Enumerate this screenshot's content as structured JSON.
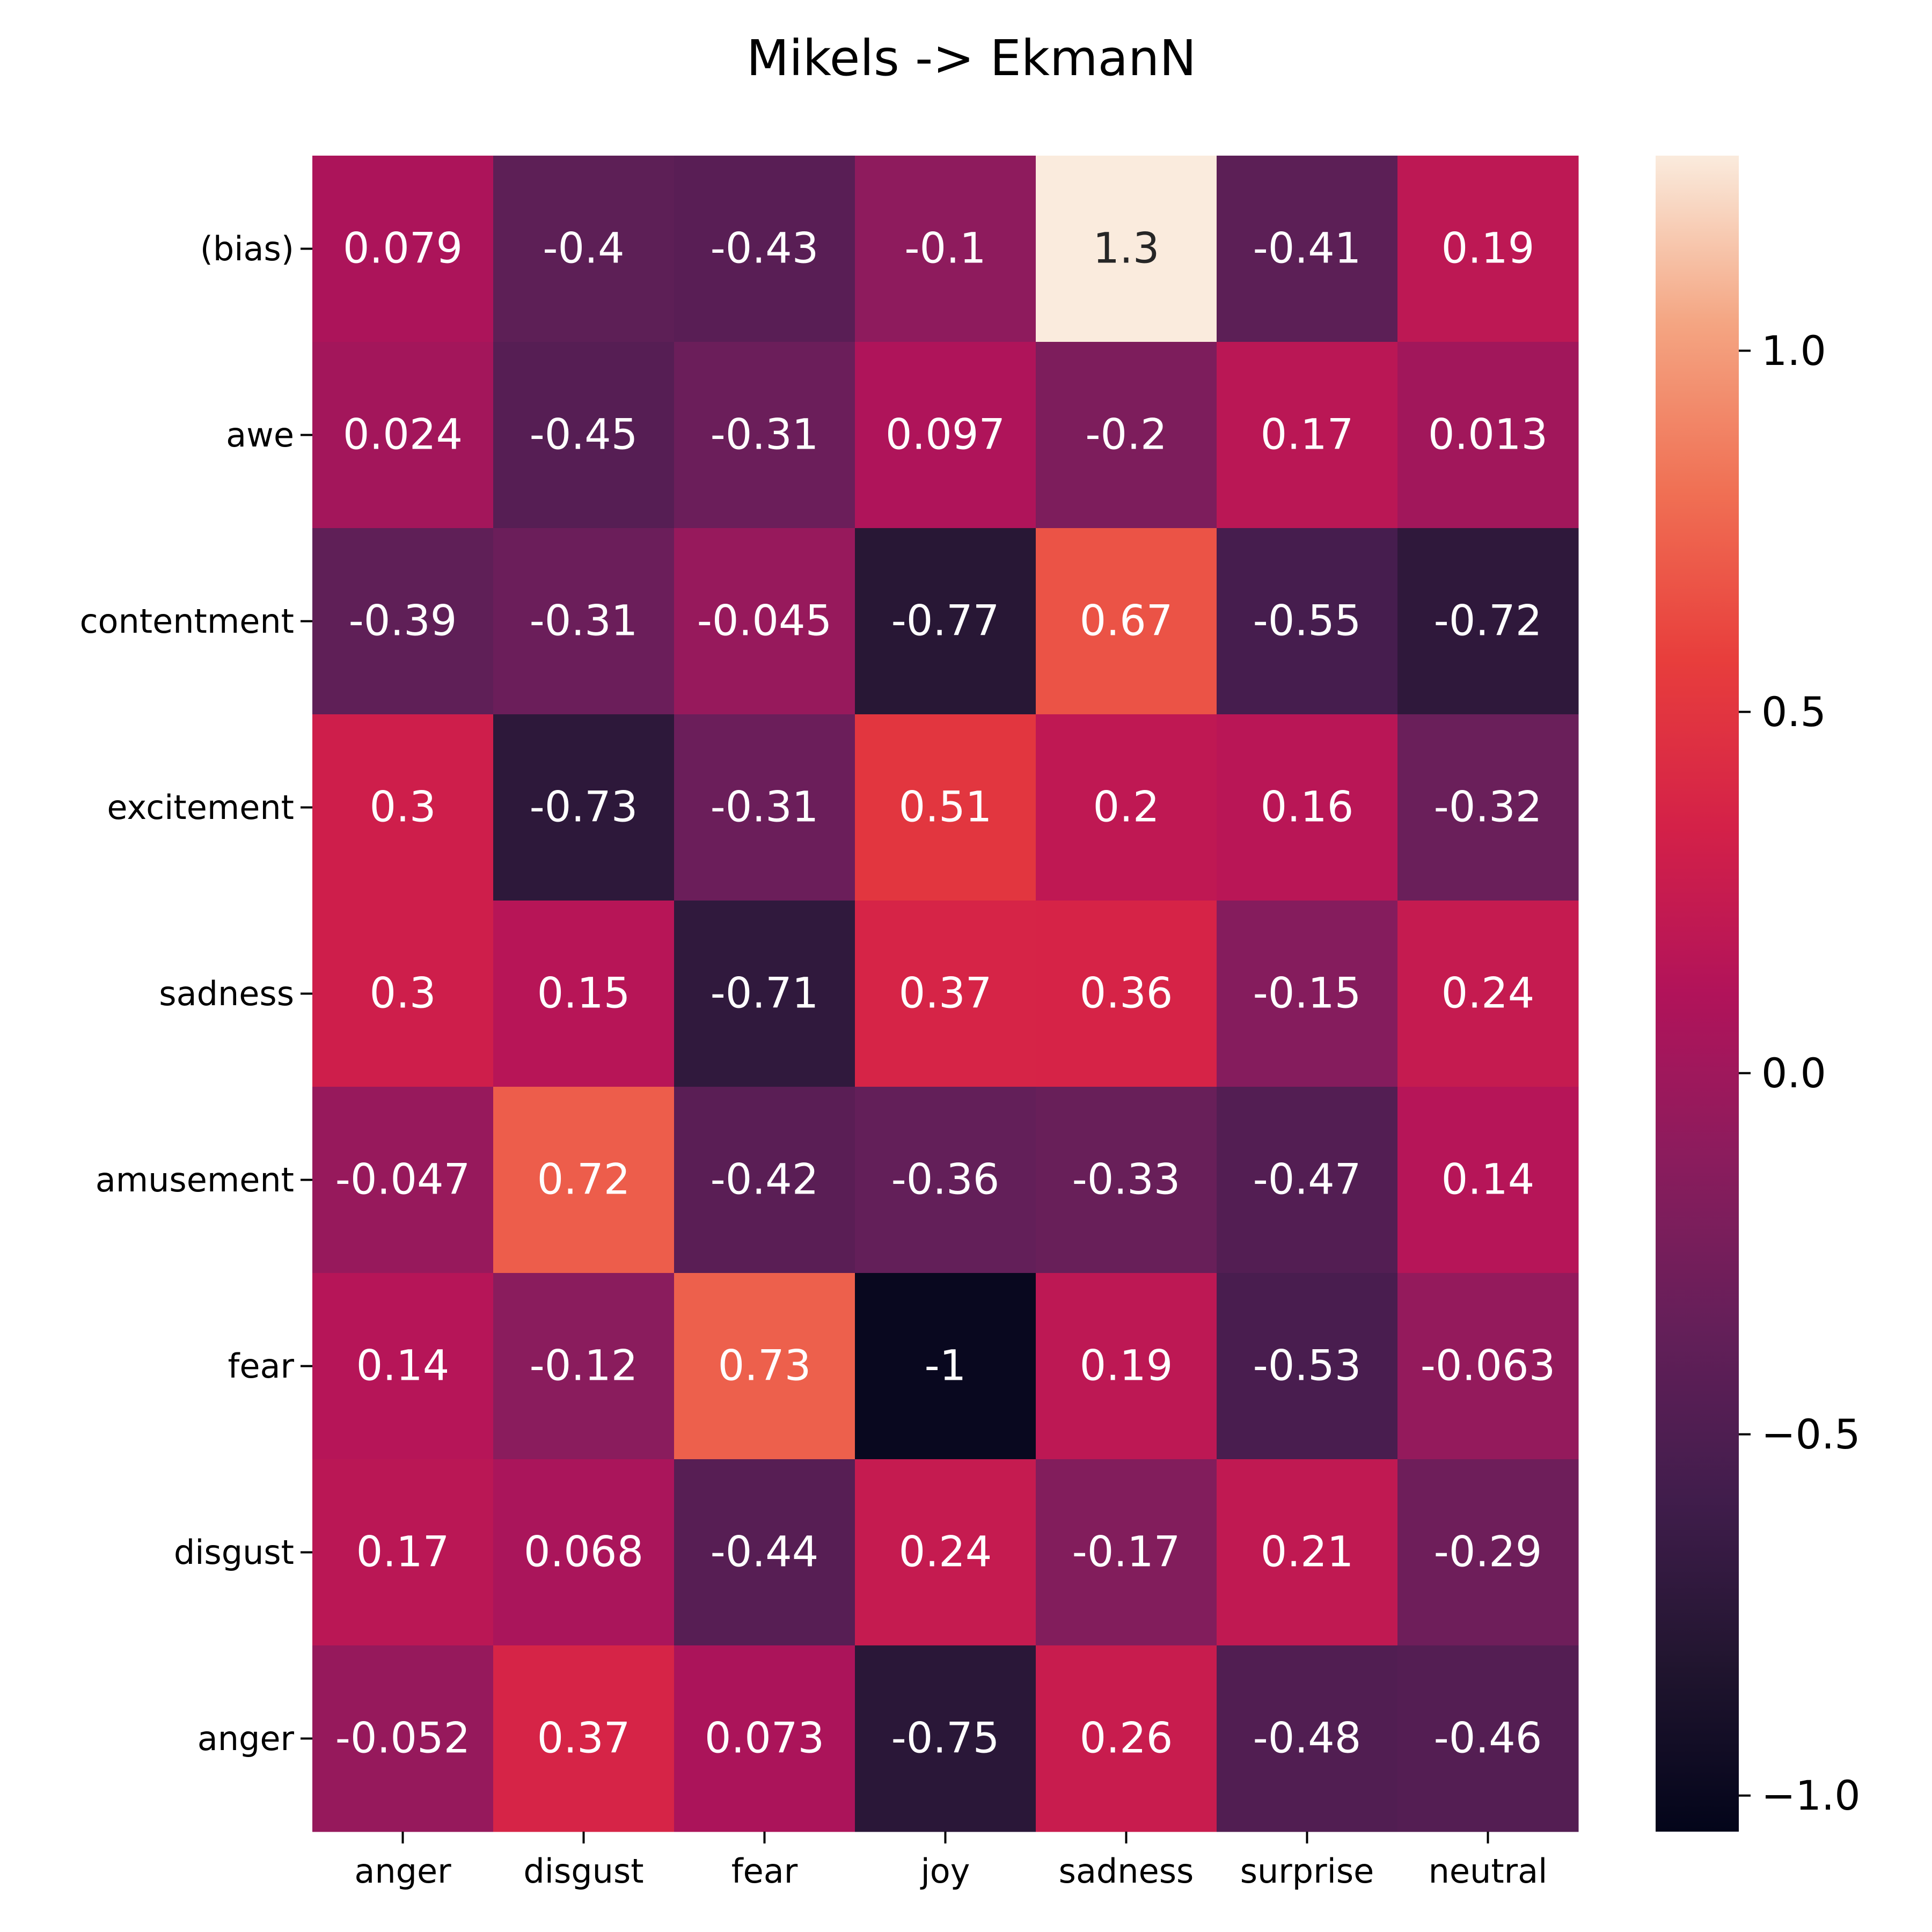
{
  "chart_data": {
    "type": "heatmap",
    "title": "Mikels -> EkmanN",
    "x_categories": [
      "anger",
      "disgust",
      "fear",
      "joy",
      "sadness",
      "surprise",
      "neutral"
    ],
    "y_categories": [
      "(bias)",
      "awe",
      "contentment",
      "excitement",
      "sadness",
      "amusement",
      "fear",
      "disgust",
      "anger"
    ],
    "values": [
      [
        0.079,
        -0.4,
        -0.43,
        -0.1,
        1.3,
        -0.41,
        0.19
      ],
      [
        0.024,
        -0.45,
        -0.31,
        0.097,
        -0.2,
        0.17,
        0.013
      ],
      [
        -0.39,
        -0.31,
        -0.045,
        -0.77,
        0.67,
        -0.55,
        -0.72
      ],
      [
        0.3,
        -0.73,
        -0.31,
        0.51,
        0.2,
        0.16,
        -0.32
      ],
      [
        0.3,
        0.15,
        -0.71,
        0.37,
        0.36,
        -0.15,
        0.24
      ],
      [
        -0.047,
        0.72,
        -0.42,
        -0.36,
        -0.33,
        -0.47,
        0.14
      ],
      [
        0.14,
        -0.12,
        0.73,
        -1,
        0.19,
        -0.53,
        -0.063
      ],
      [
        0.17,
        0.068,
        -0.44,
        0.24,
        -0.17,
        0.21,
        -0.29
      ],
      [
        -0.052,
        0.37,
        0.073,
        -0.75,
        0.26,
        -0.48,
        -0.46
      ]
    ],
    "labels": [
      [
        "0.079",
        "-0.4",
        "-0.43",
        "-0.1",
        "1.3",
        "-0.41",
        "0.19"
      ],
      [
        "0.024",
        "-0.45",
        "-0.31",
        "0.097",
        "-0.2",
        "0.17",
        "0.013"
      ],
      [
        "-0.39",
        "-0.31",
        "-0.045",
        "-0.77",
        "0.67",
        "-0.55",
        "-0.72"
      ],
      [
        "0.3",
        "-0.73",
        "-0.31",
        "0.51",
        "0.2",
        "0.16",
        "-0.32"
      ],
      [
        "0.3",
        "0.15",
        "-0.71",
        "0.37",
        "0.36",
        "-0.15",
        "0.24"
      ],
      [
        "-0.047",
        "0.72",
        "-0.42",
        "-0.36",
        "-0.33",
        "-0.47",
        "0.14"
      ],
      [
        "0.14",
        "-0.12",
        "0.73",
        "-1",
        "0.19",
        "-0.53",
        "-0.063"
      ],
      [
        "0.17",
        "0.068",
        "-0.44",
        "0.24",
        "-0.17",
        "0.21",
        "-0.29"
      ],
      [
        "-0.052",
        "0.37",
        "0.073",
        "-0.75",
        "0.26",
        "-0.48",
        "-0.46"
      ]
    ],
    "colorbar": {
      "colormap": "rocket",
      "range": [
        -1.05,
        1.27
      ],
      "ticks": [
        1.0,
        0.5,
        0.0,
        -0.5,
        -1.0
      ],
      "tick_labels": [
        "1.0",
        "0.5",
        "0.0",
        "−0.5",
        "−1.0"
      ]
    },
    "grid": false,
    "legend": "colorbar-right"
  }
}
